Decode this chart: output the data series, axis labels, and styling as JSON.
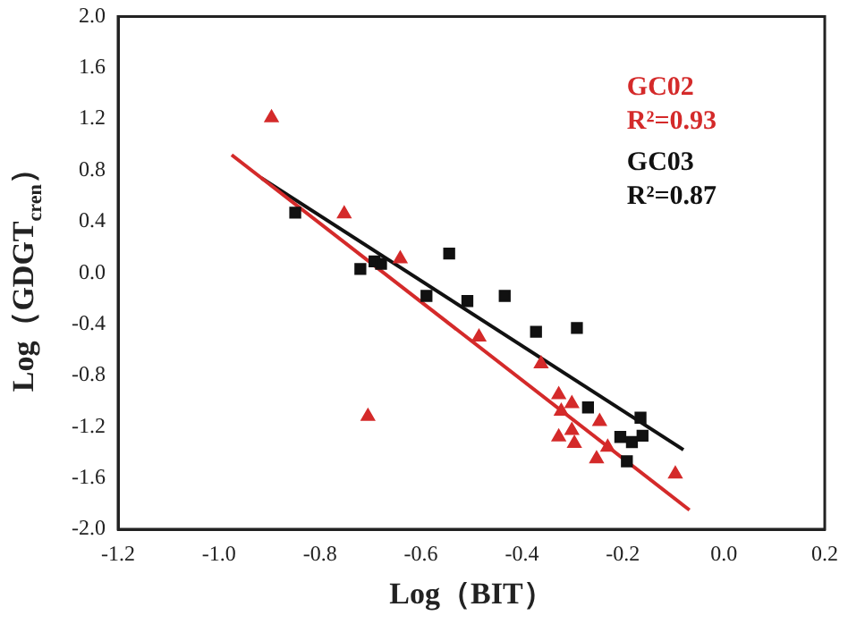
{
  "chart_data": {
    "type": "scatter",
    "xlabel": "Log（BIT）",
    "ylabel": "Log（GDGT$_{cren}$）",
    "xlim": [
      -1.2,
      0.2
    ],
    "xticks": [
      {
        "value": -1.2,
        "label": "-1.2"
      },
      {
        "value": -1,
        "label": "-1.0"
      },
      {
        "value": -0.8,
        "label": "-0.8"
      },
      {
        "value": -0.6,
        "label": "-0.6"
      },
      {
        "value": -0.4,
        "label": "-0.4"
      },
      {
        "value": -0.2,
        "label": "-0.2"
      },
      {
        "value": 0,
        "label": "0.0"
      },
      {
        "value": 0.2,
        "label": "0.2"
      }
    ],
    "ylim": [
      -2,
      2
    ],
    "yticks": [
      {
        "value": -2,
        "label": "-2.0"
      },
      {
        "value": -1.6,
        "label": "-1.6"
      },
      {
        "value": -1.2,
        "label": "-1.2"
      },
      {
        "value": -0.8,
        "label": "-0.8"
      },
      {
        "value": -0.4,
        "label": "-0.4"
      },
      {
        "value": 0,
        "label": "0.0"
      },
      {
        "value": 0.4,
        "label": "0.4"
      },
      {
        "value": 0.8,
        "label": "0.8"
      },
      {
        "value": 1.2,
        "label": "1.2"
      },
      {
        "value": 1.6,
        "label": "1.6"
      },
      {
        "value": 2,
        "label": "2.0"
      }
    ],
    "grid": false,
    "legend": "top right",
    "annotations": [
      "R²=0.93",
      "R²=0.87"
    ],
    "series": [
      {
        "name": "GC02",
        "marker": "triangle",
        "color": "#d42a2a",
        "x": [
          -0.896,
          -0.752,
          -0.641,
          -0.705,
          -0.485,
          -0.362,
          -0.327,
          -0.322,
          -0.301,
          -0.327,
          -0.301,
          -0.296,
          -0.246,
          -0.252,
          -0.23,
          -0.096
        ],
        "values": [
          1.21,
          0.46,
          0.11,
          -1.12,
          -0.5,
          -0.71,
          -0.95,
          -1.08,
          -1.02,
          -1.28,
          -1.23,
          -1.33,
          -1.16,
          -1.45,
          -1.36,
          -1.57
        ]
      },
      {
        "name": "GC03",
        "marker": "square",
        "color": "#111111",
        "x": [
          -0.849,
          -0.72,
          -0.692,
          -0.679,
          -0.544,
          -0.589,
          -0.508,
          -0.434,
          -0.372,
          -0.291,
          -0.269,
          -0.205,
          -0.182,
          -0.165,
          -0.161,
          -0.192
        ],
        "values": [
          0.47,
          0.03,
          0.09,
          0.07,
          0.15,
          -0.18,
          -0.22,
          -0.18,
          -0.46,
          -0.43,
          -1.05,
          -1.28,
          -1.32,
          -1.13,
          -1.27,
          -1.47
        ]
      },
      {
        "type": "line",
        "marker": "none",
        "color": "#d42a2a",
        "x": [
          -0.975,
          -0.068
        ],
        "values": [
          0.92,
          -1.85
        ]
      },
      {
        "type": "line",
        "marker": "none",
        "color": "#111111",
        "x": [
          -0.916,
          -0.08
        ],
        "values": [
          0.74,
          -1.38
        ]
      }
    ]
  }
}
